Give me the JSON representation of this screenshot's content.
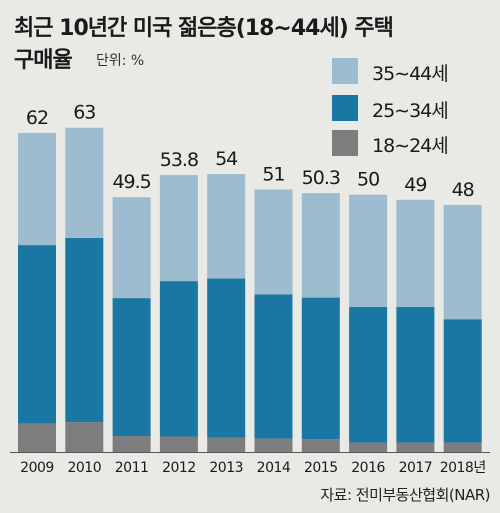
{
  "header": {
    "title_line1": "최근 10년간 미국 젊은층(18∼44세) 주택",
    "title_line2": "구매율",
    "unit": "단위: %"
  },
  "source": "자료: 전미부동산협회(NAR)",
  "colors": {
    "age_35_44": "#9dbccf",
    "age_25_34": "#1a76a3",
    "age_18_24": "#7d7d7d",
    "background": "#e9e9e5"
  },
  "chart_data": {
    "type": "bar",
    "stacked": true,
    "categories": [
      "2009",
      "2010",
      "2011",
      "2012",
      "2013",
      "2014",
      "2015",
      "2016",
      "2017",
      "2018년"
    ],
    "totals": [
      62,
      63,
      49.5,
      53.8,
      54,
      51,
      50.3,
      50,
      49,
      48
    ],
    "total_labels": [
      "62",
      "63",
      "49.5",
      "53.8",
      "54",
      "51",
      "50.3",
      "50",
      "49",
      "48"
    ],
    "series": [
      {
        "name": "18∼24세",
        "color": "#7d7d7d",
        "values": [
          5.5,
          5.8,
          3.1,
          3.0,
          2.8,
          2.6,
          2.5,
          1.8,
          1.8,
          1.8
        ]
      },
      {
        "name": "25∼34세",
        "color": "#1a76a3",
        "values": [
          34.7,
          35.8,
          26.8,
          30.2,
          30.9,
          28.0,
          27.5,
          26.4,
          26.4,
          24.0
        ]
      },
      {
        "name": "35∼44세",
        "color": "#9dbccf",
        "values": [
          21.8,
          21.4,
          19.6,
          20.6,
          20.3,
          20.4,
          20.3,
          21.8,
          20.8,
          22.2
        ]
      }
    ],
    "legend_order": [
      "35∼44세",
      "25∼34세",
      "18∼24세"
    ],
    "legend_position": "top-right",
    "ylim": [
      0,
      68
    ],
    "grid": false
  }
}
